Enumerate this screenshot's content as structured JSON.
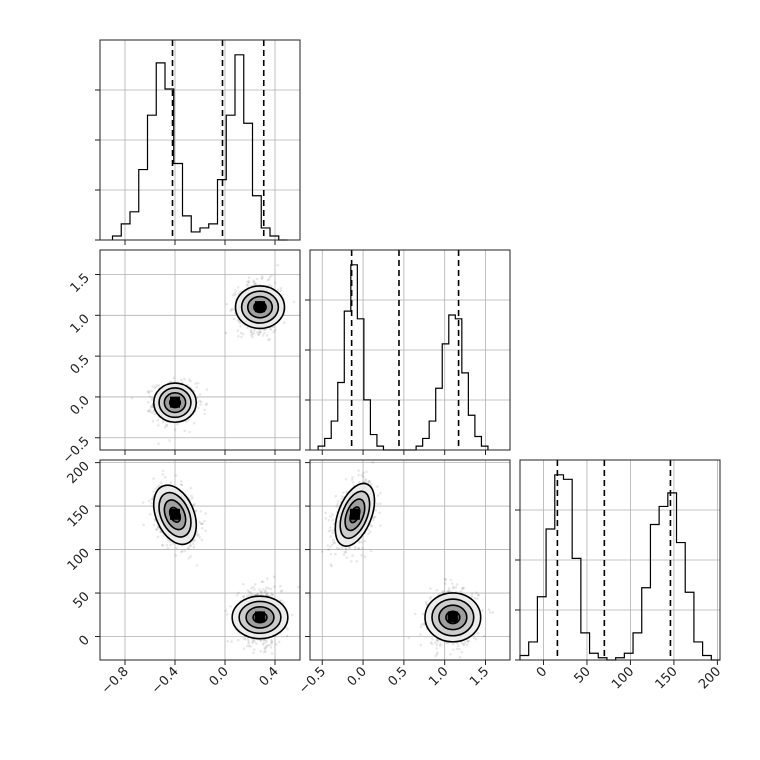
{
  "chart_data": {
    "type": "corner",
    "grid": true,
    "parameters": [
      {
        "range": [
          -1.0,
          0.6
        ],
        "ticks": [
          -0.8,
          -0.4,
          0.0,
          0.4
        ],
        "tick_labels": [
          "−0.8",
          "−0.4",
          "0.0",
          "0.4"
        ]
      },
      {
        "range": [
          -0.65,
          1.8
        ],
        "ticks": [
          -0.5,
          0.0,
          0.5,
          1.0,
          1.5
        ],
        "tick_labels": [
          "−0.5",
          "0.0",
          "0.5",
          "1.0",
          "1.5"
        ]
      },
      {
        "range": [
          -27,
          203
        ],
        "ticks": [
          0,
          50,
          100,
          150,
          200
        ],
        "tick_labels": [
          "0",
          "50",
          "100",
          "150",
          "200"
        ]
      }
    ],
    "histograms": [
      {
        "param": 0,
        "bin_edges": [
          -0.9,
          -0.83,
          -0.76,
          -0.69,
          -0.62,
          -0.55,
          -0.48,
          -0.41,
          -0.34,
          -0.27,
          -0.2,
          -0.13,
          -0.06,
          0.01,
          0.08,
          0.15,
          0.22,
          0.29,
          0.36,
          0.43,
          0.5
        ],
        "counts": [
          2,
          8,
          14,
          35,
          62,
          88,
          75,
          38,
          12,
          4,
          6,
          8,
          30,
          62,
          92,
          58,
          22,
          6,
          2,
          0
        ],
        "quantiles": [
          -0.42,
          -0.02,
          0.31
        ]
      },
      {
        "param": 1,
        "bin_edges": [
          -0.55,
          -0.47,
          -0.39,
          -0.31,
          -0.23,
          -0.15,
          -0.07,
          0.01,
          0.09,
          0.17,
          0.25,
          0.33,
          0.41,
          0.49,
          0.57,
          0.65,
          0.73,
          0.81,
          0.89,
          0.97,
          1.05,
          1.13,
          1.21,
          1.29,
          1.37,
          1.45,
          1.53
        ],
        "counts": [
          2,
          6,
          15,
          35,
          72,
          96,
          68,
          26,
          8,
          2,
          0,
          0,
          0,
          0,
          0,
          2,
          6,
          15,
          32,
          55,
          70,
          68,
          40,
          18,
          7,
          2
        ],
        "quantiles": [
          -0.14,
          0.44,
          1.17
        ]
      },
      {
        "param": 2,
        "bin_edges": [
          -27,
          -17,
          -7,
          3,
          13,
          23,
          33,
          43,
          53,
          63,
          73,
          83,
          93,
          103,
          113,
          123,
          133,
          143,
          153,
          163,
          173,
          183,
          193,
          203
        ],
        "counts": [
          2,
          8,
          28,
          58,
          82,
          80,
          45,
          12,
          3,
          1,
          0,
          1,
          3,
          12,
          32,
          60,
          68,
          74,
          52,
          30,
          8,
          2,
          0
        ],
        "quantiles": [
          16,
          70,
          146
        ]
      }
    ],
    "scatter_panels": [
      {
        "x_param": 0,
        "y_param": 1,
        "clusters": [
          {
            "mean": [
              -0.4,
              -0.07
            ],
            "sd": [
              0.085,
              0.12
            ],
            "rho": 0.0,
            "n": 700
          },
          {
            "mean": [
              0.28,
              1.1
            ],
            "sd": [
              0.085,
              0.15
            ],
            "rho": 0.0,
            "n": 700
          }
        ]
      },
      {
        "x_param": 0,
        "y_param": 2,
        "clusters": [
          {
            "mean": [
              -0.4,
              140
            ],
            "sd": [
              0.085,
              17
            ],
            "rho": -0.35,
            "n": 700
          },
          {
            "mean": [
              0.28,
              22
            ],
            "sd": [
              0.085,
              16
            ],
            "rho": 0.0,
            "n": 700
          }
        ]
      },
      {
        "x_param": 1,
        "y_param": 2,
        "clusters": [
          {
            "mean": [
              -0.1,
              140
            ],
            "sd": [
              0.12,
              18
            ],
            "rho": 0.45,
            "n": 700
          },
          {
            "mean": [
              1.1,
              22
            ],
            "sd": [
              0.15,
              16
            ],
            "rho": 0.0,
            "n": 700
          }
        ]
      }
    ],
    "contour_levels_sigma": [
      0.5,
      1.0,
      1.5,
      2.0
    ]
  }
}
